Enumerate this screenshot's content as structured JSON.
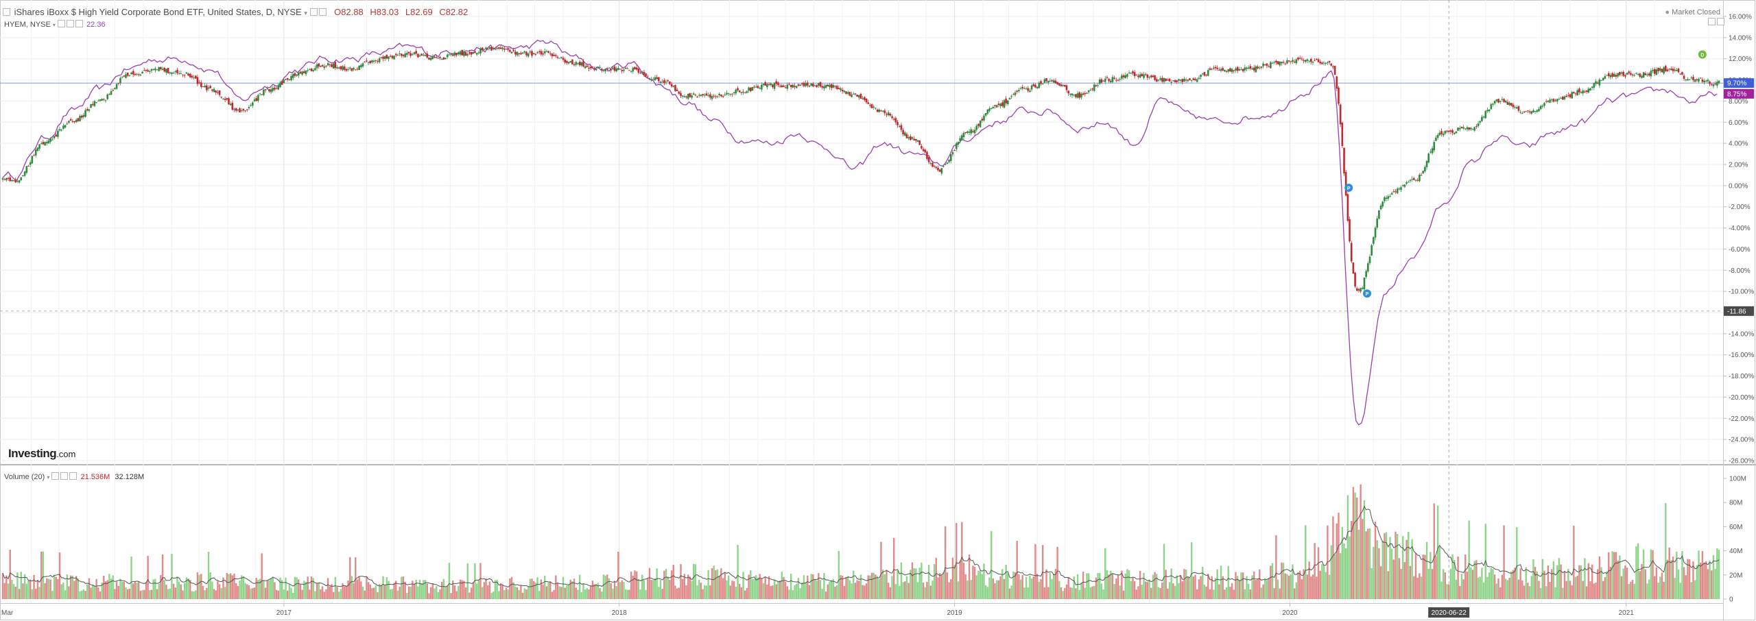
{
  "header": {
    "symbol_title": "iShares iBoxx $ High Yield Corporate Bond ETF, United States, D, NYSE",
    "ohlc": {
      "open": "O82.88",
      "high": "H83.03",
      "low": "L82.69",
      "close": "C82.82"
    },
    "market_status": "Market Closed",
    "compare_label": "HYEM, NYSE",
    "compare_value": "22.36",
    "icons": [
      "collapse-icon",
      "chevron-down-icon",
      "settings-icon",
      "close-icon",
      "fullscreen-icon"
    ]
  },
  "volume_header": {
    "label": "Volume (20)",
    "value1": "21.536M",
    "value2": "32.128M"
  },
  "watermark": {
    "brand": "Investing",
    "suffix": ".com"
  },
  "crosshair": {
    "y_value": "-11.86",
    "date": "2020-06-22"
  },
  "colors": {
    "up": "#2e8b3e",
    "down": "#c1272d",
    "compare_line": "#9b3fb0",
    "vol_up": "#8fd48b",
    "vol_down": "#e08a8a",
    "vol_ma": "#555555",
    "ref_line": "#6f8be0",
    "last_label_main": "#3e5fd6",
    "last_label_compare": "#a2219f"
  },
  "chart_data": [
    {
      "type": "candlestick",
      "title": "",
      "y_axis": {
        "unit": "%",
        "ylim": [
          -26,
          16
        ],
        "ticks": [
          "16.00%",
          "14.00%",
          "12.00%",
          "10.00%",
          "8.00%",
          "6.00%",
          "4.00%",
          "2.00%",
          "0.00%",
          "-2.00%",
          "-4.00%",
          "-6.00%",
          "-8.00%",
          "-10.00%",
          "-12.00%",
          "-14.00%",
          "-16.00%",
          "-18.00%",
          "-20.00%",
          "-22.00%",
          "-24.00%",
          "-26.00%"
        ]
      },
      "x_axis": {
        "labels": [
          "Mar",
          "2017",
          "2018",
          "2019",
          "2020",
          "2021"
        ],
        "range": [
          "2016-03",
          "2021-04"
        ]
      },
      "last_values": {
        "main": "9.70%",
        "compare": "8.75%"
      },
      "grid": true,
      "series": [
        {
          "name": "iShares iBoxx $ High Yield Corporate Bond ETF",
          "x": [
            "2016-03",
            "2016-04",
            "2016-05",
            "2016-06",
            "2016-07",
            "2016-08",
            "2016-09",
            "2016-10",
            "2016-11",
            "2016-12",
            "2017-01",
            "2017-02",
            "2017-03",
            "2017-04",
            "2017-05",
            "2017-06",
            "2017-07",
            "2017-08",
            "2017-09",
            "2017-10",
            "2017-11",
            "2017-12",
            "2018-01",
            "2018-02",
            "2018-03",
            "2018-04",
            "2018-05",
            "2018-06",
            "2018-07",
            "2018-08",
            "2018-09",
            "2018-10",
            "2018-11",
            "2018-12",
            "2019-01",
            "2019-02",
            "2019-03",
            "2019-04",
            "2019-05",
            "2019-06",
            "2019-07",
            "2019-08",
            "2019-09",
            "2019-10",
            "2019-11",
            "2019-12",
            "2020-01",
            "2020-02",
            "2020-03",
            "2020-04",
            "2020-05",
            "2020-06",
            "2020-07",
            "2020-08",
            "2020-09",
            "2020-10",
            "2020-11",
            "2020-12",
            "2021-01",
            "2021-02",
            "2021-03",
            "2021-04"
          ],
          "values": [
            0.5,
            4.0,
            6.0,
            8.0,
            10.5,
            11.0,
            10.5,
            9.0,
            7.0,
            9.0,
            10.5,
            11.5,
            11.0,
            12.0,
            12.5,
            12.0,
            12.5,
            13.0,
            12.5,
            12.5,
            11.5,
            11.0,
            11.0,
            10.0,
            8.5,
            8.5,
            9.0,
            9.5,
            9.5,
            9.5,
            8.5,
            7.0,
            4.5,
            1.5,
            5.0,
            7.5,
            9.0,
            10.0,
            8.5,
            10.0,
            10.5,
            10.0,
            10.0,
            11.0,
            11.0,
            11.5,
            12.0,
            11.5,
            -10.0,
            -1.0,
            0.5,
            5.0,
            5.5,
            8.0,
            7.0,
            8.0,
            9.0,
            10.5,
            10.5,
            11.0,
            10.0,
            9.7
          ]
        },
        {
          "name": "HYEM, NYSE",
          "x": [
            "2016-03",
            "2016-04",
            "2016-05",
            "2016-06",
            "2016-07",
            "2016-08",
            "2016-09",
            "2016-10",
            "2016-11",
            "2016-12",
            "2017-01",
            "2017-02",
            "2017-03",
            "2017-04",
            "2017-05",
            "2017-06",
            "2017-07",
            "2017-08",
            "2017-09",
            "2017-10",
            "2017-11",
            "2017-12",
            "2018-01",
            "2018-02",
            "2018-03",
            "2018-04",
            "2018-05",
            "2018-06",
            "2018-07",
            "2018-08",
            "2018-09",
            "2018-10",
            "2018-11",
            "2018-12",
            "2019-01",
            "2019-02",
            "2019-03",
            "2019-04",
            "2019-05",
            "2019-06",
            "2019-07",
            "2019-08",
            "2019-09",
            "2019-10",
            "2019-11",
            "2019-12",
            "2020-01",
            "2020-02",
            "2020-03",
            "2020-04",
            "2020-05",
            "2020-06",
            "2020-07",
            "2020-08",
            "2020-09",
            "2020-10",
            "2020-11",
            "2020-12",
            "2021-01",
            "2021-02",
            "2021-03",
            "2021-04"
          ],
          "values": [
            1.0,
            4.5,
            7.0,
            9.0,
            11.0,
            12.0,
            12.0,
            11.0,
            8.0,
            9.5,
            11.0,
            12.0,
            12.0,
            12.5,
            13.0,
            12.5,
            13.0,
            13.0,
            13.0,
            13.5,
            12.0,
            11.0,
            11.5,
            9.5,
            8.0,
            6.0,
            4.5,
            4.0,
            5.0,
            3.5,
            1.5,
            4.0,
            3.0,
            2.0,
            4.5,
            6.0,
            7.0,
            7.0,
            5.5,
            6.0,
            4.0,
            8.0,
            6.5,
            6.0,
            6.5,
            7.0,
            9.0,
            10.5,
            -23.0,
            -10.0,
            -6.5,
            -2.0,
            2.0,
            4.5,
            3.5,
            5.0,
            6.0,
            8.0,
            8.5,
            9.0,
            8.0,
            8.75
          ]
        }
      ]
    },
    {
      "type": "bar",
      "title": "Volume (20)",
      "y_axis": {
        "ticks": [
          "100M",
          "80M",
          "60M",
          "40M",
          "20M",
          "0"
        ],
        "ylim": [
          0,
          100
        ]
      },
      "x": [
        "2016-03",
        "2016-05",
        "2016-07",
        "2016-09",
        "2016-11",
        "2017-01",
        "2017-03",
        "2017-05",
        "2017-07",
        "2017-09",
        "2017-11",
        "2018-01",
        "2018-03",
        "2018-05",
        "2018-07",
        "2018-09",
        "2018-11",
        "2019-01",
        "2019-03",
        "2019-05",
        "2019-07",
        "2019-09",
        "2019-11",
        "2020-01",
        "2020-03",
        "2020-05",
        "2020-07",
        "2020-09",
        "2020-11",
        "2021-01",
        "2021-03"
      ],
      "values_millions": [
        14,
        13,
        12,
        13,
        14,
        11,
        12,
        11,
        10,
        11,
        12,
        14,
        18,
        15,
        13,
        14,
        19,
        22,
        16,
        14,
        15,
        16,
        17,
        19,
        60,
        30,
        22,
        20,
        21,
        28,
        26
      ],
      "ma_name": "Volume MA (20)"
    }
  ]
}
